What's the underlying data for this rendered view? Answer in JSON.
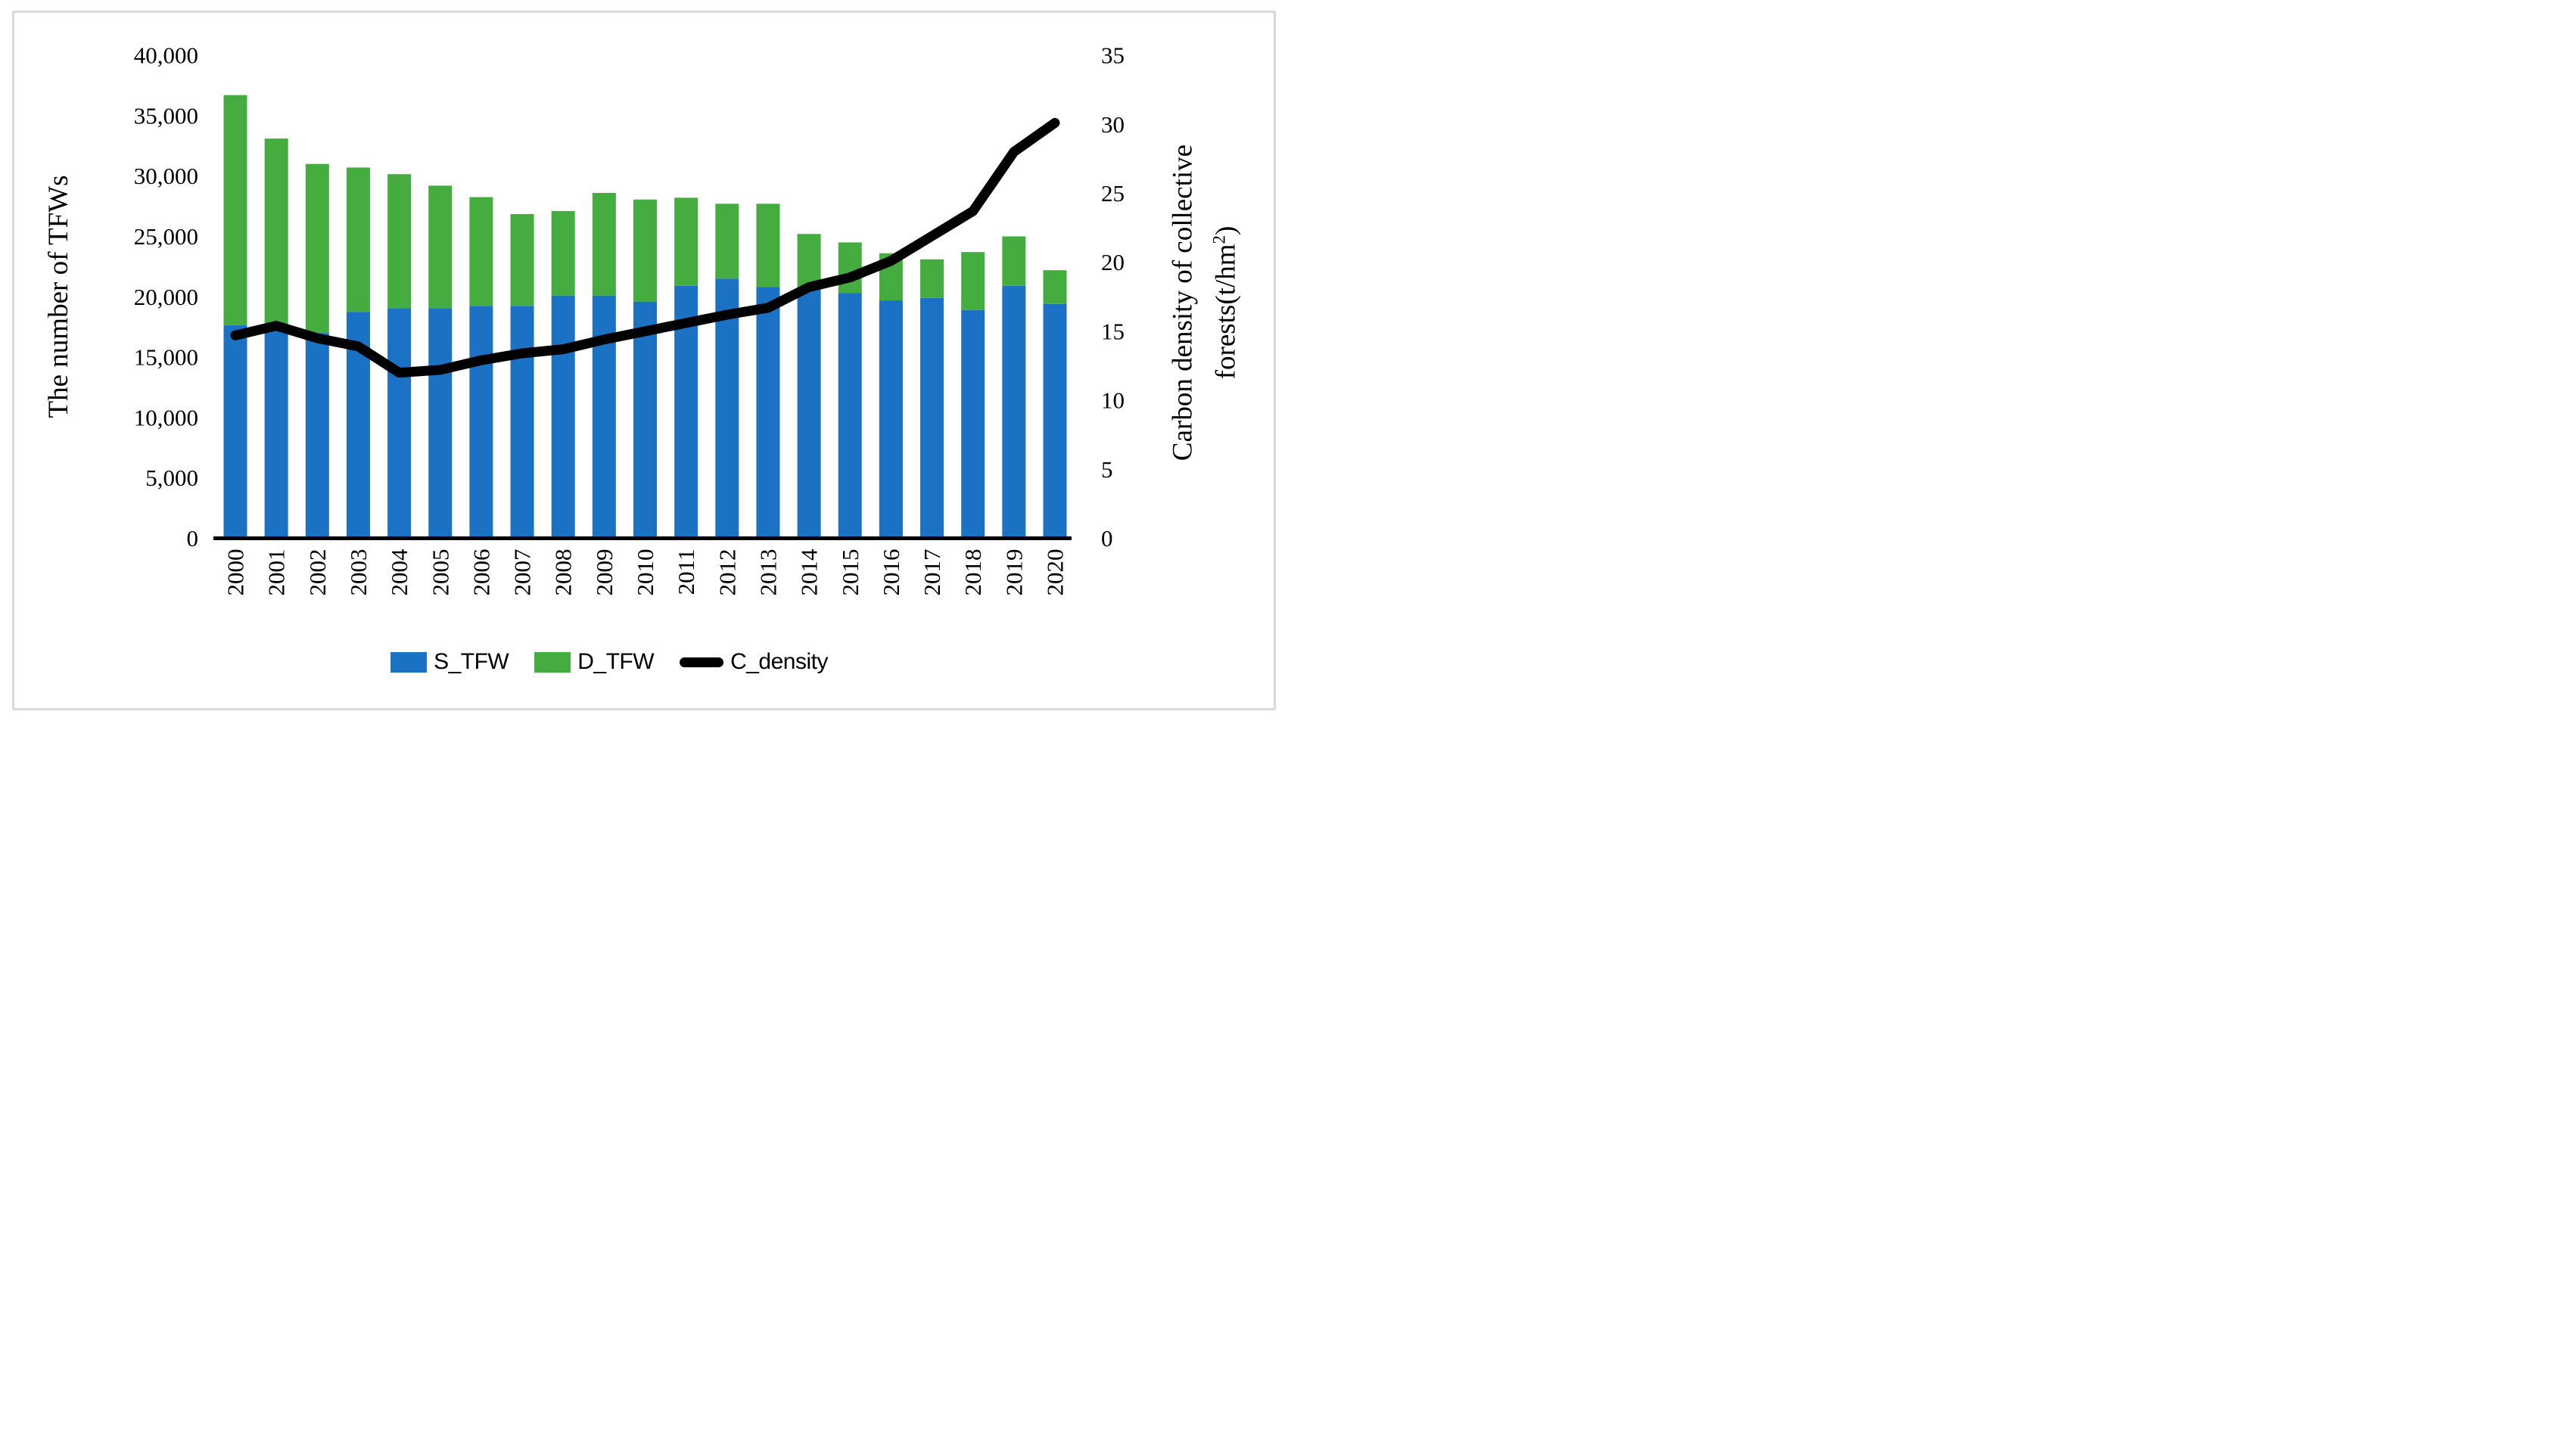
{
  "chart_data": {
    "type": "combo-stacked-bar-line",
    "categories": [
      2000,
      2001,
      2002,
      2003,
      2004,
      2005,
      2006,
      2007,
      2008,
      2009,
      2010,
      2011,
      2012,
      2013,
      2014,
      2015,
      2016,
      2017,
      2018,
      2019,
      2020
    ],
    "series": [
      {
        "name": "S_TFW",
        "type": "bar",
        "axis": "left",
        "color": "#1b72c4",
        "values": [
          17650,
          17700,
          17000,
          18750,
          19050,
          19050,
          19250,
          19250,
          20100,
          20100,
          19600,
          20900,
          21500,
          20800,
          20800,
          20300,
          19700,
          19900,
          18900,
          20900,
          19400
        ]
      },
      {
        "name": "D_TFW",
        "type": "bar",
        "axis": "left",
        "color": "#45ad3f",
        "values": [
          19050,
          15400,
          14000,
          11950,
          11100,
          10150,
          9000,
          7600,
          7000,
          8500,
          8450,
          7300,
          6200,
          6900,
          4400,
          4200,
          3900,
          3200,
          4800,
          4100,
          2800
        ]
      },
      {
        "name": "C_density",
        "type": "line",
        "axis": "right",
        "color": "#000000",
        "values": [
          14.7,
          15.4,
          14.5,
          13.9,
          12.0,
          12.2,
          12.9,
          13.4,
          13.7,
          14.4,
          15.0,
          15.6,
          16.2,
          16.7,
          18.2,
          18.9,
          20.1,
          21.9,
          23.7,
          28.0,
          30.1
        ]
      }
    ],
    "left_axis": {
      "title": "The number of TFWs",
      "range": [
        0,
        40000
      ],
      "tick_interval": 5000,
      "tick_labels": [
        "0",
        "5,000",
        "10,000",
        "15,000",
        "20,000",
        "25,000",
        "30,000",
        "35,000",
        "40,000"
      ]
    },
    "right_axis": {
      "title_line1": "Carbon density of collective",
      "title_line2": "forests(t/hm²)",
      "range": [
        0,
        35
      ],
      "tick_interval": 5,
      "tick_labels": [
        "0",
        "5",
        "10",
        "15",
        "20",
        "25",
        "30",
        "35"
      ]
    },
    "x_axis": {
      "label_rotation_deg": -90
    },
    "legend": {
      "s_tfw_label": "S_TFW",
      "d_tfw_label": "D_TFW",
      "c_density_label": "C_density"
    },
    "grid": "off",
    "legend_position": "bottom"
  }
}
